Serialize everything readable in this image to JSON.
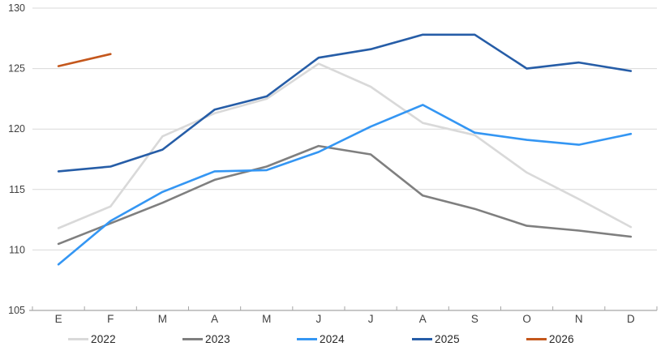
{
  "chart_data": {
    "type": "line",
    "categories": [
      "E",
      "F",
      "M",
      "A",
      "M",
      "J",
      "J",
      "A",
      "S",
      "O",
      "N",
      "D"
    ],
    "series": [
      {
        "name": "2022",
        "color": "#d9d9d9",
        "values": [
          111.8,
          113.6,
          119.4,
          121.3,
          122.5,
          125.4,
          123.5,
          120.5,
          119.5,
          116.4,
          114.2,
          111.9
        ]
      },
      {
        "name": "2023",
        "color": "#7f7f7f",
        "values": [
          110.5,
          112.2,
          113.9,
          115.8,
          116.9,
          118.6,
          117.9,
          114.5,
          113.4,
          112.0,
          111.6,
          111.1
        ]
      },
      {
        "name": "2024",
        "color": "#3496f3",
        "values": [
          108.8,
          112.4,
          114.8,
          116.5,
          116.6,
          118.1,
          120.2,
          122.0,
          119.7,
          119.1,
          118.7,
          119.6
        ]
      },
      {
        "name": "2025",
        "color": "#265da7",
        "values": [
          116.5,
          116.9,
          118.3,
          121.6,
          122.7,
          125.9,
          126.6,
          127.8,
          127.8,
          125.0,
          125.5,
          124.8
        ]
      },
      {
        "name": "2026",
        "color": "#c4571c",
        "values": [
          125.2,
          126.2,
          null,
          null,
          null,
          null,
          null,
          null,
          null,
          null,
          null,
          null
        ]
      }
    ],
    "ylim": [
      105,
      130
    ],
    "yticks": [
      105,
      110,
      115,
      120,
      125,
      130
    ],
    "ytick_labels": [
      "105",
      "110",
      "115",
      "120",
      "125",
      "130"
    ],
    "grid": true,
    "legend_position": "bottom",
    "colors": {
      "gridline": "#d9d9d9",
      "axis_line": "#a6a6a6",
      "tick": "#a6a6a6",
      "axis_text": "#404040"
    }
  }
}
